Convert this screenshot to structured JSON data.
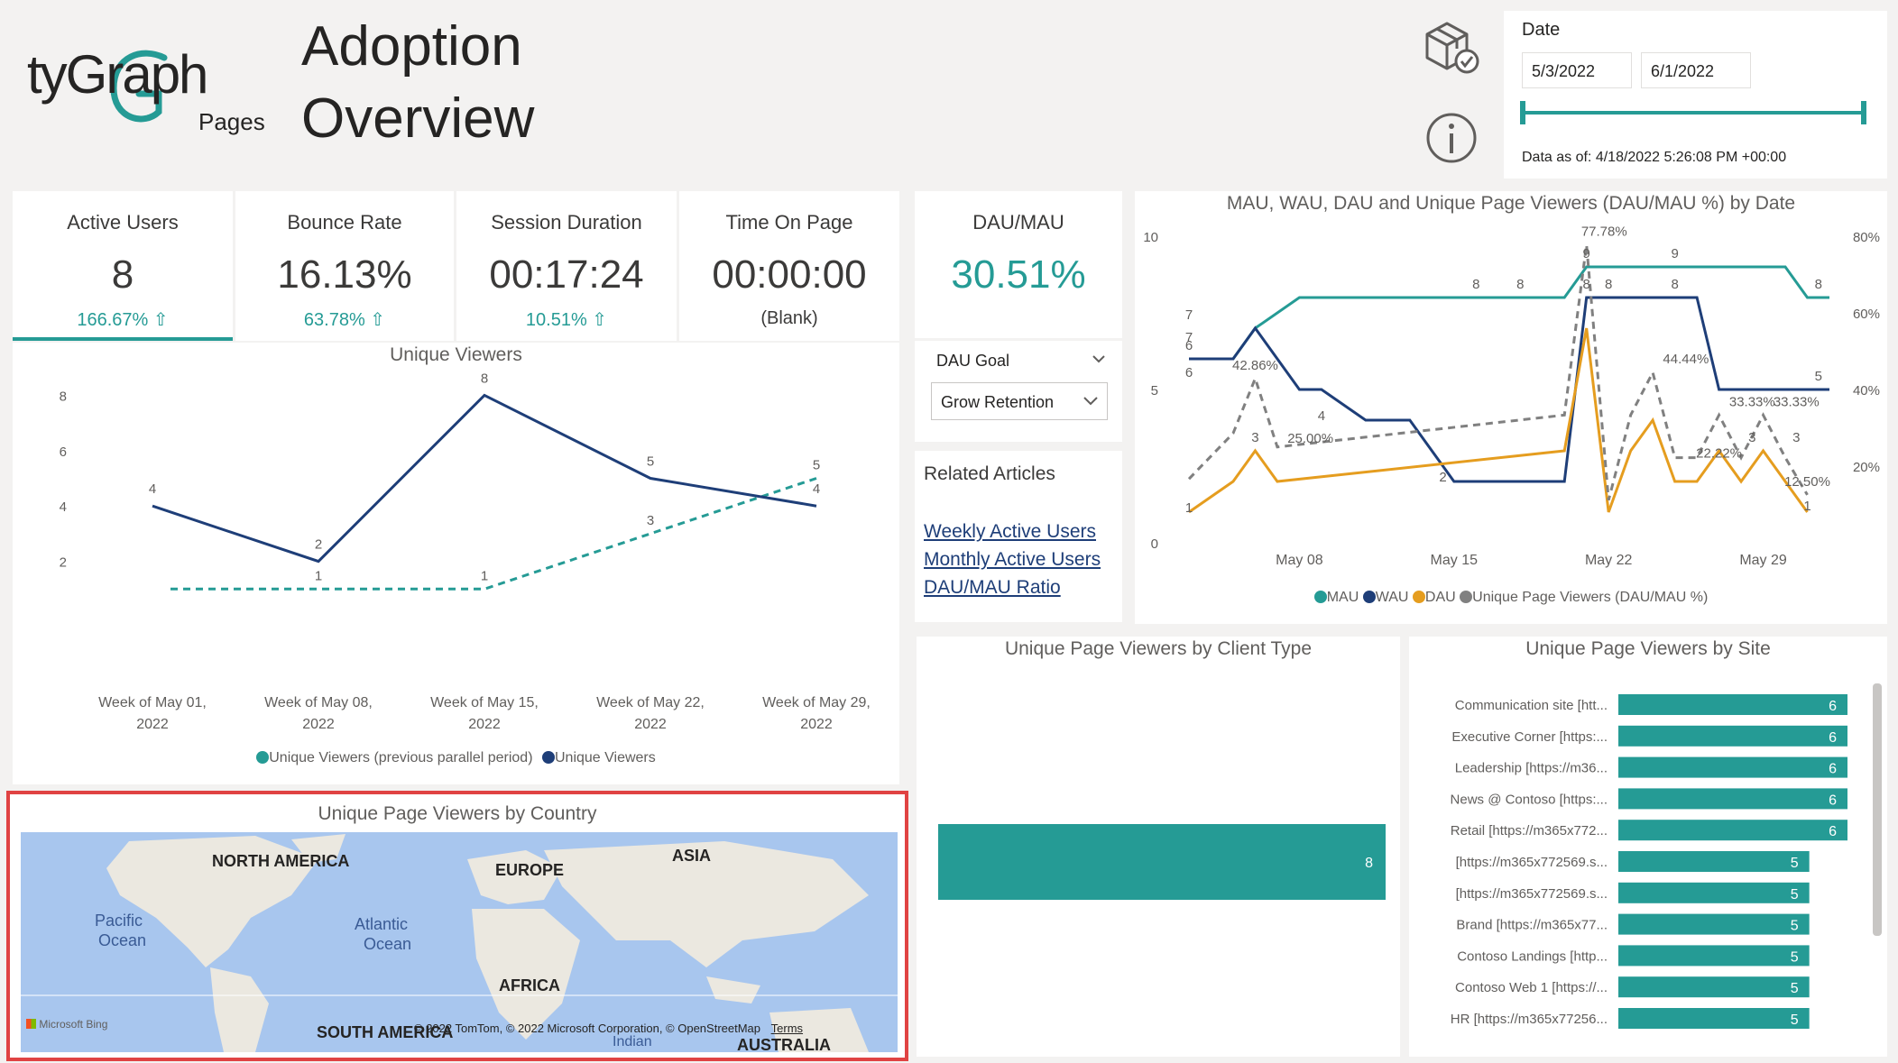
{
  "header": {
    "logo_main": "tyGraph",
    "logo_sub": "Pages",
    "title_line1": "Adoption",
    "title_line2": "Overview"
  },
  "date_filter": {
    "label": "Date",
    "start": "5/3/2022",
    "end": "6/1/2022",
    "data_as_of": "Data as of: 4/18/2022 5:26:08 PM +00:00"
  },
  "kpis": [
    {
      "title": "Active Users",
      "value": "8",
      "sub": "166.67% ⇧"
    },
    {
      "title": "Bounce Rate",
      "value": "16.13%",
      "sub": "63.78% ⇧"
    },
    {
      "title": "Session Duration",
      "value": "00:17:24",
      "sub": "10.51% ⇧"
    },
    {
      "title": "Time On Page",
      "value": "00:00:00",
      "sub": "(Blank)"
    }
  ],
  "dau_mau": {
    "title": "DAU/MAU",
    "value": "30.51%"
  },
  "dau_goal": {
    "label": "DAU Goal",
    "selected": "Grow Retention"
  },
  "related_articles": {
    "title": "Related Articles",
    "links": [
      "Weekly Active Users",
      "Monthly Active Users",
      "DAU/MAU Ratio"
    ]
  },
  "map": {
    "title": "Unique Page Viewers by Country",
    "labels": [
      "NORTH AMERICA",
      "EUROPE",
      "ASIA",
      "AFRICA",
      "SOUTH AMERICA",
      "AUSTRALIA",
      "Pacific",
      "Ocean",
      "Atlantic",
      "Ocean",
      "Indian"
    ],
    "provider": "Microsoft Bing",
    "copyright": "© 2022 TomTom, © 2022 Microsoft Corporation, © OpenStreetMap",
    "terms": "Terms"
  },
  "colors": {
    "teal": "#259b95",
    "navy": "#1e3e78",
    "orange": "#e59d1f",
    "gray": "#808080",
    "highlight": "#e04343"
  },
  "chart_data": [
    {
      "type": "line",
      "title": "Unique Viewers",
      "categories": [
        "Week of May 01, 2022",
        "Week of May 08, 2022",
        "Week of May 15, 2022",
        "Week of May 22, 2022",
        "Week of May 29, 2022"
      ],
      "series": [
        {
          "name": "Unique Viewers (previous parallel period)",
          "values": [
            null,
            1,
            1,
            3,
            5
          ],
          "style": "dashed",
          "color": "#259b95"
        },
        {
          "name": "Unique Viewers",
          "values": [
            4,
            2,
            8,
            5,
            4
          ],
          "style": "solid",
          "color": "#1e3e78"
        }
      ],
      "y_ticks": [
        2,
        4,
        6,
        8
      ],
      "ylim": [
        0,
        8.6
      ],
      "legend": "bottom-center"
    },
    {
      "type": "line",
      "title": "MAU, WAU, DAU and Unique Page Viewers (DAU/MAU %) by Date",
      "x_ticks": [
        "May 08",
        "May 15",
        "May 22",
        "May 29"
      ],
      "y_ticks_left": [
        "0",
        "5",
        "10"
      ],
      "y_ticks_right": [
        "20%",
        "40%",
        "60%",
        "80%"
      ],
      "ylim_left": [
        0,
        10
      ],
      "ylim_right": [
        0,
        80
      ],
      "legend": "bottom-center",
      "series": [
        {
          "name": "MAU",
          "color": "#259b95",
          "x": [
            "5/3/2022",
            "5/5/2022",
            "5/6/2022",
            "5/8/2022",
            "5/20/2022",
            "5/21/2022",
            "5/30/2022",
            "5/31/2022",
            "6/1/2022"
          ],
          "values": [
            6,
            6,
            7,
            8,
            8,
            9,
            9,
            8,
            8
          ]
        },
        {
          "name": "WAU",
          "color": "#1e3e78",
          "x": [
            "5/3/2022",
            "5/5/2022",
            "5/6/2022",
            "5/8/2022",
            "5/9/2022",
            "5/11/2022",
            "5/13/2022",
            "5/15/2022",
            "5/20/2022",
            "5/21/2022",
            "5/26/2022",
            "5/27/2022",
            "6/1/2022"
          ],
          "values": [
            6,
            6,
            7,
            5,
            5,
            4,
            4,
            2,
            2,
            8,
            8,
            5,
            5
          ]
        },
        {
          "name": "DAU",
          "color": "#e59d1f",
          "x": [
            "5/3/2022",
            "5/5/2022",
            "5/6/2022",
            "5/7/2022",
            "5/20/2022",
            "5/21/2022",
            "5/22/2022",
            "5/23/2022",
            "5/24/2022",
            "5/25/2022",
            "5/26/2022",
            "5/27/2022",
            "5/28/2022",
            "5/29/2022",
            "5/30/2022",
            "5/31/2022"
          ],
          "values": [
            1,
            2,
            3,
            2,
            3,
            7,
            1,
            3,
            4,
            2,
            2,
            3,
            2,
            3,
            2,
            1
          ]
        },
        {
          "name": "Unique Page Viewers (DAU/MAU %)",
          "color": "#808080",
          "style": "dashed",
          "x": [
            "5/3/2022",
            "5/5/2022",
            "5/6/2022",
            "5/7/2022",
            "5/20/2022",
            "5/21/2022",
            "5/22/2022",
            "5/23/2022",
            "5/24/2022",
            "5/25/2022",
            "5/26/2022",
            "5/27/2022",
            "5/28/2022",
            "5/29/2022",
            "5/30/2022",
            "5/31/2022"
          ],
          "values": [
            16.67,
            28.57,
            42.86,
            25.0,
            33.33,
            77.78,
            11.11,
            33.33,
            44.44,
            22.22,
            22.22,
            33.33,
            22.22,
            33.33,
            22.22,
            12.5
          ]
        }
      ],
      "data_labels": [
        "6",
        "6",
        "7",
        "7",
        "8",
        "8",
        "8",
        "9",
        "8",
        "8",
        "9",
        "8",
        "42.86%",
        "3",
        "4",
        "25.00%",
        "2",
        "77.78%",
        "44.44%",
        "22.22%",
        "33.33%",
        "33.33%",
        "3",
        "3",
        "5",
        "1",
        "12.50%",
        "1"
      ]
    },
    {
      "type": "bar",
      "title": "Unique Page Viewers by Client Type",
      "categories": [
        ""
      ],
      "values": [
        8
      ],
      "color": "#259b95"
    },
    {
      "type": "bar",
      "title": "Unique Page Viewers by Site",
      "orientation": "horizontal",
      "categories": [
        "Communication site [htt...",
        "Executive Corner [https:...",
        "Leadership [https://m36...",
        "News @ Contoso [https:...",
        "Retail [https://m365x772...",
        "[https://m365x772569.s...",
        "[https://m365x772569.s...",
        "Brand [https://m365x77...",
        "Contoso Landings [http...",
        "Contoso Web 1 [https://...",
        "HR [https://m365x77256..."
      ],
      "values": [
        6,
        6,
        6,
        6,
        6,
        5,
        5,
        5,
        5,
        5,
        5
      ],
      "xlim": [
        0,
        6
      ],
      "color": "#259b95"
    }
  ]
}
